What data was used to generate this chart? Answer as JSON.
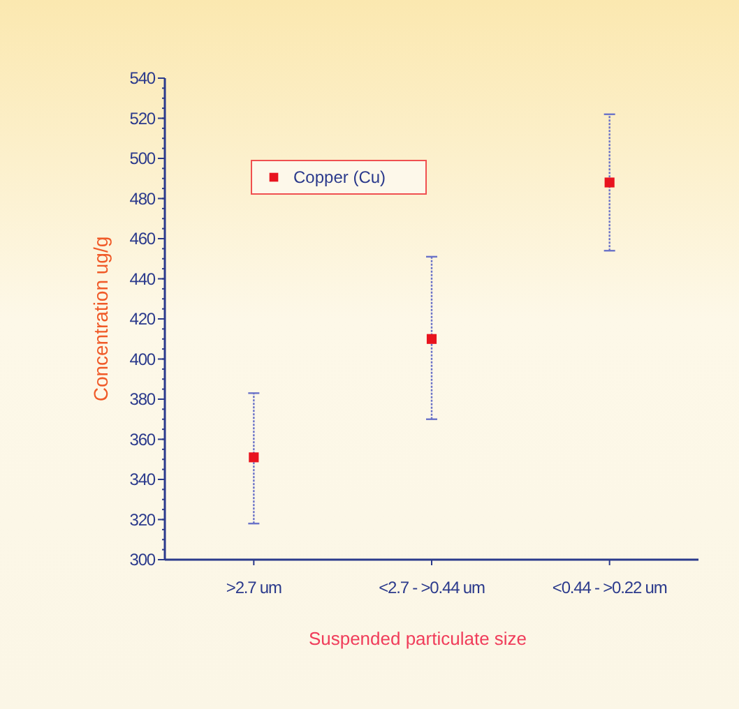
{
  "chart_data": {
    "type": "scatter",
    "xlabel": "Suspended particulate size",
    "ylabel": "Concentration  ug/g",
    "categories": [
      ">2.7 um",
      "<2.7 - >0.44 um",
      "<0.44 - >0.22 um"
    ],
    "series": [
      {
        "name": "Copper (Cu)",
        "color": "#e8141e",
        "values": [
          351,
          410,
          488
        ],
        "errors": [
          [
            318,
            383
          ],
          [
            370,
            451
          ],
          [
            454,
            522
          ]
        ]
      }
    ],
    "ylim": [
      300,
      540
    ],
    "yticks": [
      300,
      320,
      340,
      360,
      380,
      400,
      420,
      440,
      460,
      480,
      500,
      520,
      540
    ],
    "marker": "square",
    "legend": "top left",
    "grid": false
  }
}
